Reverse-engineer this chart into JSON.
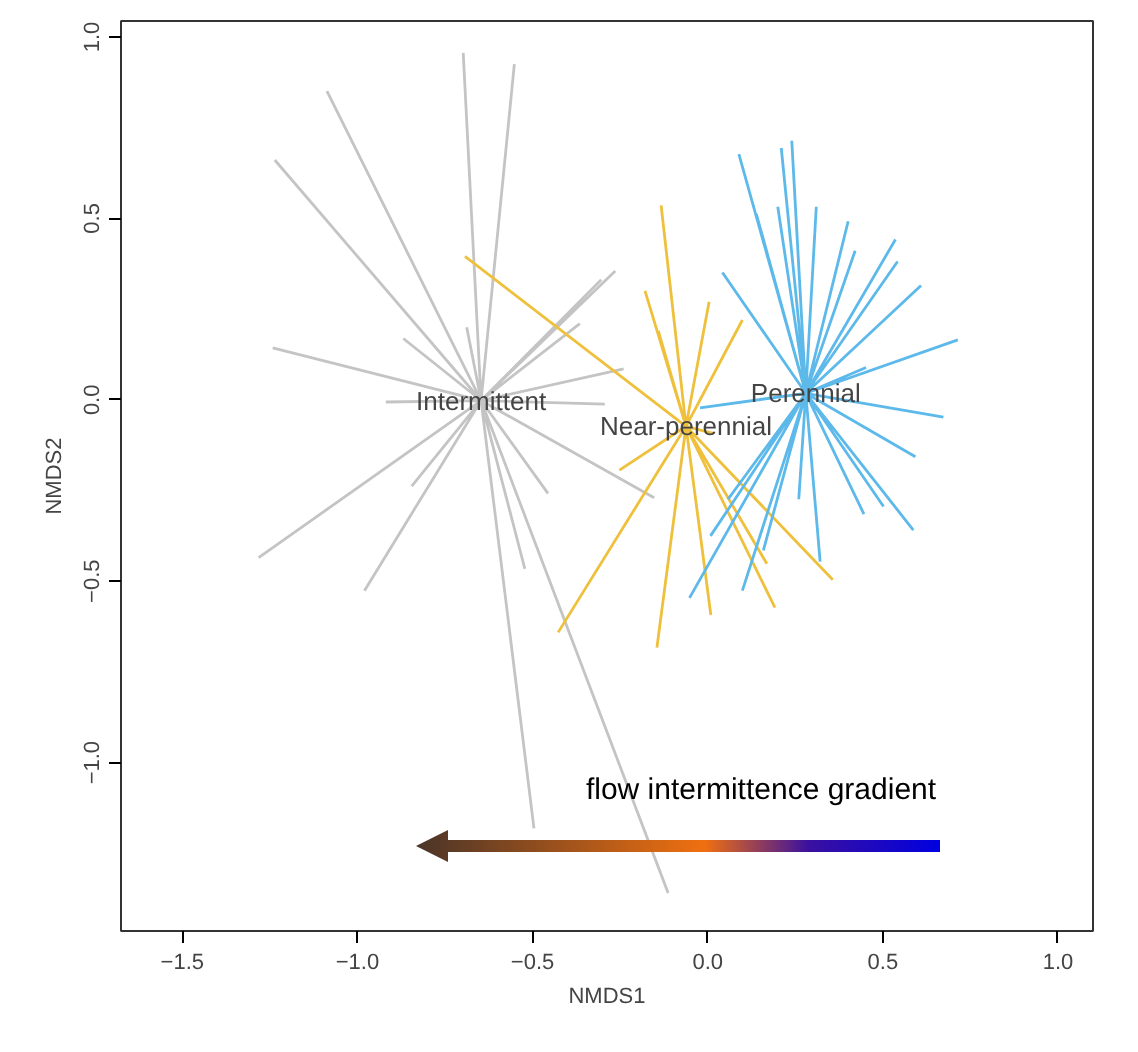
{
  "chart_data": {
    "type": "line",
    "xlabel": "NMDS1",
    "ylabel": "NMDS2",
    "xlim": [
      -1.675,
      1.1
    ],
    "ylim": [
      -1.464,
      1.044
    ],
    "xticks": [
      {
        "value": -1.5,
        "label": "−1.5"
      },
      {
        "value": -1.0,
        "label": "−1.0"
      },
      {
        "value": -0.5,
        "label": "−0.5"
      },
      {
        "value": 0,
        "label": "0.0"
      },
      {
        "value": 0.5,
        "label": "0.5"
      },
      {
        "value": 1.0,
        "label": "1.0"
      }
    ],
    "yticks": [
      {
        "value": -1.0,
        "label": "−1.0"
      },
      {
        "value": -0.5,
        "label": "−0.5"
      },
      {
        "value": 0,
        "label": "0.0"
      },
      {
        "value": 0.5,
        "label": "0.5"
      },
      {
        "value": 1.0,
        "label": "1.0"
      }
    ],
    "grid": false,
    "legend": false,
    "marker": "none",
    "line_style": "solid",
    "annotations": [
      "flow intermittence gradient"
    ],
    "series": [
      {
        "name": "Intermittent",
        "color": "#c4c4c4",
        "x": [
          -0.647,
          -0.698,
          null,
          -0.647,
          -0.552,
          null,
          -0.647,
          -1.087,
          null,
          -0.647,
          -1.236,
          null,
          -0.647,
          -1.242,
          null,
          -0.647,
          -0.869,
          null,
          -0.647,
          -0.688,
          null,
          -0.647,
          -0.264,
          null,
          -0.647,
          -0.304,
          null,
          -0.647,
          -0.365,
          null,
          -0.647,
          -0.24,
          null,
          -0.647,
          -0.294,
          null,
          -0.647,
          -0.919,
          null,
          -0.647,
          -1.282,
          null,
          -0.647,
          -0.98,
          null,
          -0.647,
          -0.845,
          null,
          -0.647,
          -0.456,
          null,
          -0.647,
          -0.522,
          null,
          -0.647,
          -0.153,
          null,
          -0.647,
          -0.496,
          null,
          -0.647,
          -0.113
        ],
        "values": [
          -0.002,
          0.956,
          null,
          -0.002,
          0.925,
          null,
          -0.002,
          0.851,
          null,
          -0.002,
          0.661,
          null,
          -0.002,
          0.143,
          null,
          -0.002,
          0.169,
          null,
          -0.002,
          0.2,
          null,
          -0.002,
          0.355,
          null,
          -0.002,
          0.331,
          null,
          -0.002,
          0.21,
          null,
          -0.002,
          0.085,
          null,
          -0.002,
          -0.012,
          null,
          -0.002,
          -0.006,
          null,
          -0.002,
          -0.435,
          null,
          -0.002,
          -0.526,
          null,
          -0.002,
          -0.238,
          null,
          -0.002,
          -0.258,
          null,
          -0.002,
          -0.466,
          null,
          -0.002,
          -0.27,
          null,
          -0.002,
          -1.181,
          null,
          -0.002,
          -1.359
        ]
      },
      {
        "name": "Near-perennial",
        "color": "#efc03c",
        "x": [
          -0.062,
          -0.693,
          null,
          -0.062,
          -0.133,
          null,
          -0.062,
          -0.179,
          null,
          -0.062,
          0.004,
          null,
          -0.062,
          0.099,
          null,
          -0.062,
          -0.141,
          null,
          -0.062,
          -0.252,
          null,
          -0.062,
          -0.427,
          null,
          -0.062,
          -0.145,
          null,
          -0.062,
          0.009,
          null,
          -0.062,
          0.192,
          null,
          -0.062,
          0.357,
          null,
          -0.062,
          0.169,
          null,
          -0.062,
          0.018
        ],
        "values": [
          -0.073,
          0.395,
          null,
          -0.073,
          0.536,
          null,
          -0.073,
          0.3,
          null,
          -0.073,
          0.27,
          null,
          -0.073,
          0.22,
          null,
          -0.073,
          0.19,
          null,
          -0.073,
          -0.194,
          null,
          -0.073,
          -0.641,
          null,
          -0.073,
          -0.683,
          null,
          -0.073,
          -0.593,
          null,
          -0.073,
          -0.573,
          null,
          -0.073,
          -0.496,
          null,
          -0.073,
          -0.452,
          null,
          -0.073,
          -0.093
        ]
      },
      {
        "name": "Perennial",
        "color": "#5cb9ea",
        "x": [
          0.28,
          0.089,
          null,
          0.28,
          0.21,
          null,
          0.28,
          0.24,
          null,
          0.28,
          0.31,
          null,
          0.28,
          0.401,
          null,
          0.28,
          0.536,
          null,
          0.28,
          0.542,
          null,
          0.28,
          0.609,
          null,
          0.28,
          0.714,
          null,
          0.28,
          0.042,
          null,
          0.28,
          0.2,
          null,
          0.28,
          0.673,
          null,
          0.28,
          0.593,
          null,
          0.28,
          0.587,
          null,
          0.28,
          0.446,
          null,
          0.28,
          0.321,
          null,
          0.28,
          0.26,
          null,
          0.28,
          0.099,
          null,
          0.28,
          -0.052,
          null,
          0.28,
          0.008,
          null,
          0.28,
          0.058,
          null,
          0.28,
          -0.022,
          null,
          0.28,
          0.452,
          null,
          0.28,
          0.421,
          null,
          0.28,
          0.254,
          null,
          0.28,
          0.139,
          null,
          0.28,
          0.502,
          null,
          0.28,
          0.159
        ],
        "values": [
          0.018,
          0.677,
          null,
          0.018,
          0.694,
          null,
          0.018,
          0.714,
          null,
          0.018,
          0.532,
          null,
          0.018,
          0.492,
          null,
          0.018,
          0.442,
          null,
          0.018,
          0.381,
          null,
          0.018,
          0.315,
          null,
          0.018,
          0.165,
          null,
          0.018,
          0.351,
          null,
          0.018,
          0.532,
          null,
          0.018,
          -0.048,
          null,
          0.018,
          -0.157,
          null,
          0.018,
          -0.359,
          null,
          0.018,
          -0.315,
          null,
          0.018,
          -0.446,
          null,
          0.018,
          -0.274,
          null,
          0.018,
          -0.526,
          null,
          0.018,
          -0.546,
          null,
          0.018,
          -0.375,
          null,
          0.018,
          -0.274,
          null,
          0.018,
          -0.022,
          null,
          0.018,
          0.089,
          null,
          0.018,
          0.411,
          null,
          0.018,
          0.472,
          null,
          0.018,
          0.512,
          null,
          0.018,
          -0.294,
          null,
          0.018,
          -0.415
        ]
      }
    ]
  }
}
